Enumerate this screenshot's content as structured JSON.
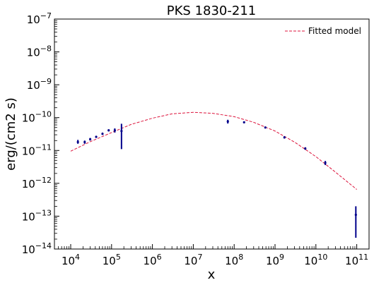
{
  "chart_data": {
    "type": "scatter",
    "title": "PKS 1830-211",
    "xlabel": "x",
    "ylabel": "erg/(cm2 s)",
    "xscale": "log",
    "yscale": "log",
    "xlim": [
      4000.0,
      200000000000.0
    ],
    "ylim": [
      1e-14,
      1e-07
    ],
    "x_ticks": [
      {
        "base": "10",
        "exp": "4",
        "value": 10000.0
      },
      {
        "base": "10",
        "exp": "5",
        "value": 100000.0
      },
      {
        "base": "10",
        "exp": "6",
        "value": 1000000.0
      },
      {
        "base": "10",
        "exp": "7",
        "value": 10000000.0
      },
      {
        "base": "10",
        "exp": "8",
        "value": 100000000.0
      },
      {
        "base": "10",
        "exp": "9",
        "value": 1000000000.0
      },
      {
        "base": "10",
        "exp": "10",
        "value": 10000000000.0
      },
      {
        "base": "10",
        "exp": "11",
        "value": 100000000000.0
      }
    ],
    "y_ticks": [
      {
        "base": "10",
        "exp": "−14",
        "value": 1e-14
      },
      {
        "base": "10",
        "exp": "−13",
        "value": 1e-13
      },
      {
        "base": "10",
        "exp": "−12",
        "value": 1e-12
      },
      {
        "base": "10",
        "exp": "−11",
        "value": 1e-11
      },
      {
        "base": "10",
        "exp": "−10",
        "value": 1e-10
      },
      {
        "base": "10",
        "exp": "−9",
        "value": 1e-09
      },
      {
        "base": "10",
        "exp": "−8",
        "value": 1e-08
      },
      {
        "base": "10",
        "exp": "−7",
        "value": 1e-07
      }
    ],
    "legend": {
      "position": "top-right"
    },
    "colors": {
      "points": "#00008b",
      "model": "#dc143c"
    },
    "series": [
      {
        "name": "Fitted model",
        "kind": "line",
        "style": "dashed",
        "x": [
          10000.0,
          30000.0,
          100000.0,
          300000.0,
          1000000.0,
          3000000.0,
          10000000.0,
          30000000.0,
          100000000.0,
          300000000.0,
          1000000000.0,
          3000000000.0,
          10000000000.0,
          30000000000.0,
          100000000000.0
        ],
        "y": [
          9.5e-12,
          1.85e-11,
          3.5e-11,
          6.2e-11,
          9.6e-11,
          1.3e-10,
          1.45e-10,
          1.35e-10,
          1.07e-10,
          7.2e-11,
          3.9e-11,
          1.8e-11,
          6.5e-12,
          2.2e-12,
          6.5e-13
        ]
      },
      {
        "kind": "points",
        "x": [
          15000.0,
          22000.0,
          30000.0,
          42000.0,
          60000.0,
          85000.0,
          120000.0,
          175000.0,
          70000000.0,
          175000000.0,
          580000000.0,
          1700000000.0,
          5500000000.0,
          17000000000.0,
          95000000000.0
        ],
        "y": [
          1.8e-11,
          1.8e-11,
          2.2e-11,
          2.6e-11,
          3.2e-11,
          4.1e-11,
          4.1e-11,
          3.9e-11,
          7.6e-11,
          7.2e-11,
          5e-11,
          2.5e-11,
          1.15e-11,
          4.2e-12,
          1.1e-13
        ],
        "ylow": [
          1.6e-11,
          1.6e-11,
          2e-11,
          2.4e-11,
          3e-11,
          3.8e-11,
          3.5e-11,
          1.1e-11,
          6.6e-11,
          6.8e-11,
          4.7e-11,
          2.3e-11,
          1.05e-11,
          3.6e-12,
          2.2e-14
        ],
        "yhigh": [
          2.1e-11,
          2e-11,
          2.4e-11,
          2.8e-11,
          3.5e-11,
          4.4e-11,
          4.7e-11,
          6.5e-11,
          8.6e-11,
          7.6e-11,
          5.3e-11,
          2.7e-11,
          1.25e-11,
          4.8e-12,
          2e-13
        ]
      }
    ]
  }
}
